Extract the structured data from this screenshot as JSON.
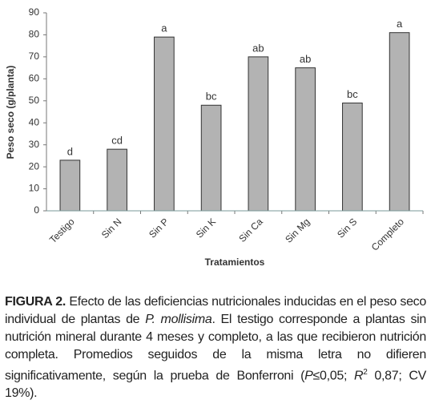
{
  "chart_data": {
    "type": "bar",
    "y_label": "Peso seco (g/planta)",
    "x_label": "Tratamientos",
    "categories": [
      "Testigo",
      "Sin N",
      "Sin P",
      "Sin K",
      "Sin Ca",
      "Sin Mg",
      "Sin S",
      "Completo"
    ],
    "values": [
      23,
      28,
      79,
      48,
      70,
      65,
      49,
      81
    ],
    "letters": [
      "d",
      "cd",
      "a",
      "bc",
      "ab",
      "ab",
      "bc",
      "a"
    ],
    "color": "#b3b3b3",
    "ylim": [
      0,
      90
    ],
    "yticks": [
      0,
      10,
      20,
      30,
      40,
      50,
      60,
      70,
      80,
      90
    ],
    "grid": false
  },
  "caption": [
    "FIGURA 2.",
    " Efecto de las deficiencias nutricionales inducidas en el peso seco individual de plantas de ",
    "P. mollisima",
    ". El testigo corresponde a plantas sin nutrición mineral durante 4 meses y completo, a las que recibieron nutrición completa. Promedios seguidos de la misma letra no difieren significativamente, según la prueba de Bonferroni (",
    "P",
    "≤0,05; ",
    "R",
    "2",
    " 0,87; CV 19%)."
  ]
}
